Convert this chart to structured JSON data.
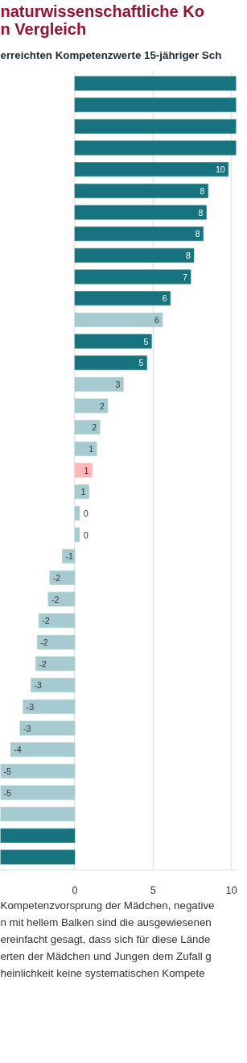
{
  "chart_data": {
    "type": "bar",
    "orientation": "horizontal",
    "title": "naturwissenschaftliche Ko\nn Vergleich",
    "subtitle": "erreichten Kompetenzwerte 15-jähriger Sch",
    "categories": [
      null,
      null,
      null,
      null,
      null,
      null,
      null,
      null,
      null,
      null,
      null,
      null,
      null,
      null,
      null,
      null,
      null,
      null,
      null,
      null,
      null,
      null,
      null,
      null,
      null,
      null,
      null,
      null,
      null,
      null,
      null,
      null,
      null,
      null,
      null,
      null,
      null
    ],
    "values": [
      10.3,
      10.3,
      10.3,
      10.3,
      9.8,
      8.5,
      8.4,
      8.2,
      7.6,
      7.4,
      6.1,
      5.6,
      4.9,
      4.6,
      3.1,
      2.1,
      1.6,
      1.4,
      1.1,
      0.9,
      0.3,
      0.3,
      -0.8,
      -1.6,
      -1.7,
      -2.3,
      -2.4,
      -2.5,
      -2.8,
      -3.3,
      -3.5,
      -4.1,
      -4.75,
      -4.75,
      -4.75,
      -4.75,
      -4.75
    ],
    "colors": [
      "#17747f",
      "#17747f",
      "#17747f",
      "#17747f",
      "#17747f",
      "#17747f",
      "#17747f",
      "#17747f",
      "#17747f",
      "#17747f",
      "#17747f",
      "#a5cbd0",
      "#17747f",
      "#17747f",
      "#a5cbd0",
      "#a5cbd0",
      "#a5cbd0",
      "#a5cbd0",
      "#ffb6b6",
      "#a5cbd0",
      "#a5cbd0",
      "#a5cbd0",
      "#a5cbd0",
      "#a5cbd0",
      "#a5cbd0",
      "#a5cbd0",
      "#a5cbd0",
      "#a5cbd0",
      "#a5cbd0",
      "#a5cbd0",
      "#a5cbd0",
      "#a5cbd0",
      "#a5cbd0",
      "#a5cbd0",
      "#a5cbd0",
      "#17747f",
      "#17747f"
    ],
    "value_labels": [
      null,
      null,
      null,
      null,
      "10",
      "8",
      "8",
      "8",
      "8",
      "7",
      "6",
      "6",
      "5",
      "5",
      "3",
      "2",
      "2",
      "1",
      "1",
      "1",
      "0",
      "0",
      "-1",
      "-2",
      "-2",
      "-2",
      "-2",
      "-2",
      "-3",
      "-3",
      "-3",
      "-4",
      "-5",
      "-5",
      null,
      null,
      null
    ],
    "xlim": [
      -4.75,
      10.3
    ],
    "xticks": [
      0,
      5,
      10
    ],
    "grid": "x",
    "tick_labels": "x",
    "annotations": [
      "Kompetenzvorsprung der Mädchen, negative",
      "n mit hellem Balken sind die ausgewiesenen",
      "ereinfacht gesagt, dass sich für diese Lände",
      "erten der Mädchen und Jungen dem Zufall g",
      "heinlichkeit keine systematischen Kompete"
    ]
  }
}
